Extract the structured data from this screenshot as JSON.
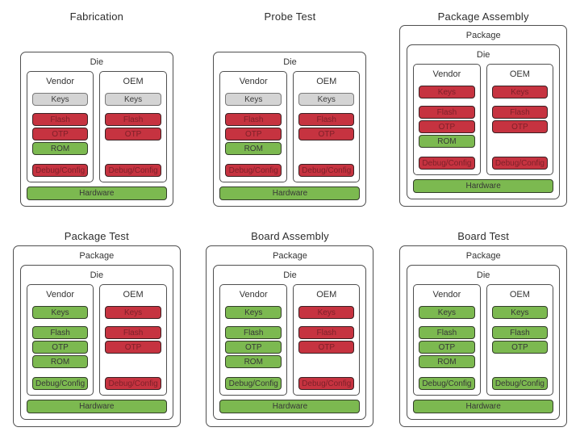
{
  "palette": {
    "red_fill": "#c63340",
    "red_text": "#7e2029",
    "green_fill": "#7cb950",
    "gray_fill": "#d4d4d4",
    "container_border": "#4f4f4f"
  },
  "stages": [
    {
      "title": "Fabrication",
      "package_label": null,
      "die_label": "Die",
      "hardware": {
        "label": "Hardware",
        "state": "green"
      },
      "columns": [
        {
          "label": "Vendor",
          "keys": {
            "label": "Keys",
            "state": "gray"
          },
          "memory": [
            {
              "label": "Flash",
              "state": "red"
            },
            {
              "label": "OTP",
              "state": "red"
            },
            {
              "label": "ROM",
              "state": "green"
            }
          ],
          "debug": {
            "label": "Debug/Config",
            "state": "red"
          }
        },
        {
          "label": "OEM",
          "keys": {
            "label": "Keys",
            "state": "gray"
          },
          "memory": [
            {
              "label": "Flash",
              "state": "red"
            },
            {
              "label": "OTP",
              "state": "red"
            }
          ],
          "debug": {
            "label": "Debug/Config",
            "state": "red"
          }
        }
      ]
    },
    {
      "title": "Probe Test",
      "package_label": null,
      "die_label": "Die",
      "hardware": {
        "label": "Hardware",
        "state": "green"
      },
      "columns": [
        {
          "label": "Vendor",
          "keys": {
            "label": "Keys",
            "state": "gray"
          },
          "memory": [
            {
              "label": "Flash",
              "state": "red"
            },
            {
              "label": "OTP",
              "state": "red"
            },
            {
              "label": "ROM",
              "state": "green"
            }
          ],
          "debug": {
            "label": "Debug/Config",
            "state": "red"
          }
        },
        {
          "label": "OEM",
          "keys": {
            "label": "Keys",
            "state": "gray"
          },
          "memory": [
            {
              "label": "Flash",
              "state": "red"
            },
            {
              "label": "OTP",
              "state": "red"
            }
          ],
          "debug": {
            "label": "Debug/Config",
            "state": "red"
          }
        }
      ]
    },
    {
      "title": "Package Assembly",
      "package_label": "Package",
      "die_label": "Die",
      "hardware": {
        "label": "Hardware",
        "state": "green"
      },
      "columns": [
        {
          "label": "Vendor",
          "keys": {
            "label": "Keys",
            "state": "red"
          },
          "memory": [
            {
              "label": "Flash",
              "state": "red"
            },
            {
              "label": "OTP",
              "state": "red"
            },
            {
              "label": "ROM",
              "state": "green"
            }
          ],
          "debug": {
            "label": "Debug/Config",
            "state": "red"
          }
        },
        {
          "label": "OEM",
          "keys": {
            "label": "Keys",
            "state": "red"
          },
          "memory": [
            {
              "label": "Flash",
              "state": "red"
            },
            {
              "label": "OTP",
              "state": "red"
            }
          ],
          "debug": {
            "label": "Debug/Config",
            "state": "red"
          }
        }
      ]
    },
    {
      "title": "Package Test",
      "package_label": "Package",
      "die_label": "Die",
      "hardware": {
        "label": "Hardware",
        "state": "green"
      },
      "columns": [
        {
          "label": "Vendor",
          "keys": {
            "label": "Keys",
            "state": "green"
          },
          "memory": [
            {
              "label": "Flash",
              "state": "green"
            },
            {
              "label": "OTP",
              "state": "green"
            },
            {
              "label": "ROM",
              "state": "green"
            }
          ],
          "debug": {
            "label": "Debug/Config",
            "state": "green"
          }
        },
        {
          "label": "OEM",
          "keys": {
            "label": "Keys",
            "state": "red"
          },
          "memory": [
            {
              "label": "Flash",
              "state": "red"
            },
            {
              "label": "OTP",
              "state": "red"
            }
          ],
          "debug": {
            "label": "Debug/Config",
            "state": "red"
          }
        }
      ]
    },
    {
      "title": "Board Assembly",
      "package_label": "Package",
      "die_label": "Die",
      "hardware": {
        "label": "Hardware",
        "state": "green"
      },
      "columns": [
        {
          "label": "Vendor",
          "keys": {
            "label": "Keys",
            "state": "green"
          },
          "memory": [
            {
              "label": "Flash",
              "state": "green"
            },
            {
              "label": "OTP",
              "state": "green"
            },
            {
              "label": "ROM",
              "state": "green"
            }
          ],
          "debug": {
            "label": "Debug/Config",
            "state": "green"
          }
        },
        {
          "label": "OEM",
          "keys": {
            "label": "Keys",
            "state": "red"
          },
          "memory": [
            {
              "label": "Flash",
              "state": "red"
            },
            {
              "label": "OTP",
              "state": "red"
            }
          ],
          "debug": {
            "label": "Debug/Config",
            "state": "red"
          }
        }
      ]
    },
    {
      "title": "Board Test",
      "package_label": "Package",
      "die_label": "Die",
      "hardware": {
        "label": "Hardware",
        "state": "green"
      },
      "columns": [
        {
          "label": "Vendor",
          "keys": {
            "label": "Keys",
            "state": "green"
          },
          "memory": [
            {
              "label": "Flash",
              "state": "green"
            },
            {
              "label": "OTP",
              "state": "green"
            },
            {
              "label": "ROM",
              "state": "green"
            }
          ],
          "debug": {
            "label": "Debug/Config",
            "state": "green"
          }
        },
        {
          "label": "OEM",
          "keys": {
            "label": "Keys",
            "state": "green"
          },
          "memory": [
            {
              "label": "Flash",
              "state": "green"
            },
            {
              "label": "OTP",
              "state": "green"
            }
          ],
          "debug": {
            "label": "Debug/Config",
            "state": "green"
          }
        }
      ]
    }
  ]
}
